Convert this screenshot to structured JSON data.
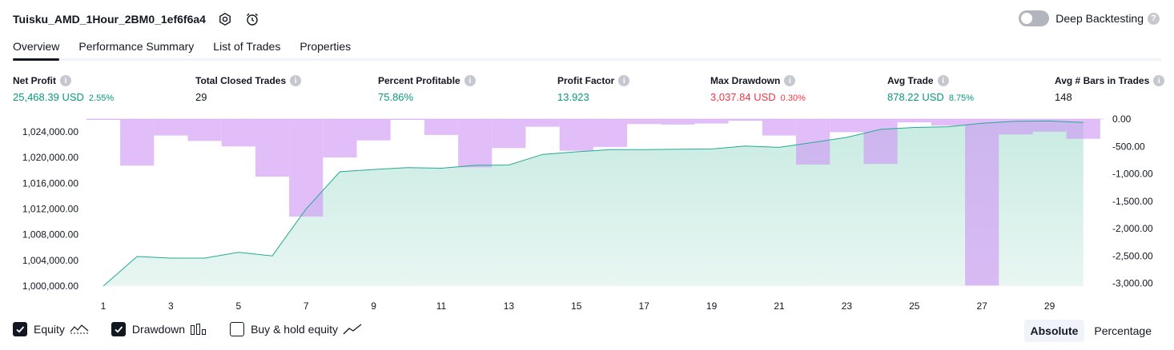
{
  "header": {
    "title": "Tuisku_AMD_1Hour_2BM0_1ef6f6a4",
    "deep_backtesting_label": "Deep Backtesting",
    "deep_backtesting_enabled": false
  },
  "tabs": [
    {
      "label": "Overview",
      "active": true
    },
    {
      "label": "Performance Summary",
      "active": false
    },
    {
      "label": "List of Trades",
      "active": false
    },
    {
      "label": "Properties",
      "active": false
    }
  ],
  "metrics": [
    {
      "label": "Net Profit",
      "value": "25,468.39 USD",
      "pct": "2.55%",
      "color": "green"
    },
    {
      "label": "Total Closed Trades",
      "value": "29",
      "pct": "",
      "color": "plain"
    },
    {
      "label": "Percent Profitable",
      "value": "75.86%",
      "pct": "",
      "color": "green"
    },
    {
      "label": "Profit Factor",
      "value": "13.923",
      "pct": "",
      "color": "green"
    },
    {
      "label": "Max Drawdown",
      "value": "3,037.84 USD",
      "pct": "0.30%",
      "color": "red"
    },
    {
      "label": "Avg Trade",
      "value": "878.22 USD",
      "pct": "8.75%",
      "color": "green"
    },
    {
      "label": "Avg # Bars in Trades",
      "value": "148",
      "pct": "",
      "color": "plain"
    }
  ],
  "colors": {
    "equity_line": "#22ab94",
    "equity_fill": "#c8ebe2",
    "drawdown_bar": "#ce93f5",
    "positive": "#089981",
    "negative": "#f23645"
  },
  "chart_data": {
    "type": "area",
    "x_ticks": [
      1,
      3,
      5,
      7,
      9,
      11,
      13,
      15,
      17,
      19,
      21,
      23,
      25,
      27,
      29
    ],
    "equity_axis": {
      "ticks": [
        "1,000,000.00",
        "1,004,000.00",
        "1,008,000.00",
        "1,012,000.00",
        "1,016,000.00",
        "1,020,000.00",
        "1,024,000.00"
      ],
      "ylim": [
        1000000,
        1026000
      ]
    },
    "drawdown_axis": {
      "ticks": [
        "0.00",
        "-500.00",
        "-1,000.00",
        "-1,500.00",
        "-2,000.00",
        "-2,500.00",
        "-3,000.00"
      ],
      "ylim": [
        -3050,
        0
      ]
    },
    "series": [
      {
        "name": "Equity",
        "type": "area",
        "x": [
          1,
          2,
          3,
          4,
          5,
          6,
          7,
          8,
          9,
          10,
          11,
          12,
          13,
          14,
          15,
          16,
          17,
          18,
          19,
          20,
          21,
          22,
          23,
          24,
          25,
          26,
          27,
          28,
          29,
          30
        ],
        "values": [
          1000000,
          1004600,
          1004350,
          1004350,
          1005250,
          1004700,
          1012000,
          1017800,
          1018150,
          1018450,
          1018350,
          1018800,
          1018850,
          1020500,
          1020900,
          1021250,
          1021250,
          1021300,
          1021350,
          1021800,
          1021600,
          1022350,
          1023150,
          1024400,
          1024700,
          1024800,
          1025350,
          1025650,
          1025700,
          1025468
        ]
      },
      {
        "name": "Drawdown",
        "type": "bar",
        "x": [
          1,
          2,
          3,
          4,
          5,
          6,
          7,
          8,
          9,
          10,
          11,
          12,
          13,
          14,
          15,
          16,
          17,
          18,
          19,
          20,
          21,
          22,
          23,
          24,
          25,
          26,
          27,
          28,
          29,
          30
        ],
        "values": [
          -5,
          -850,
          -300,
          -400,
          -500,
          -1050,
          -1780,
          -700,
          -390,
          -5,
          -290,
          -880,
          -530,
          -140,
          -580,
          -510,
          -90,
          -100,
          -80,
          -30,
          -300,
          -830,
          -240,
          -820,
          -60,
          -120,
          -3037.84,
          -280,
          -230,
          -360
        ]
      }
    ]
  },
  "legend": [
    {
      "label": "Equity",
      "checked": true,
      "icon": "equity-line-icon"
    },
    {
      "label": "Drawdown",
      "checked": true,
      "icon": "drawdown-bars-icon"
    },
    {
      "label": "Buy & hold equity",
      "checked": false,
      "icon": "buy-hold-line-icon"
    }
  ],
  "mode": {
    "absolute_label": "Absolute",
    "percentage_label": "Percentage",
    "active": "absolute"
  }
}
